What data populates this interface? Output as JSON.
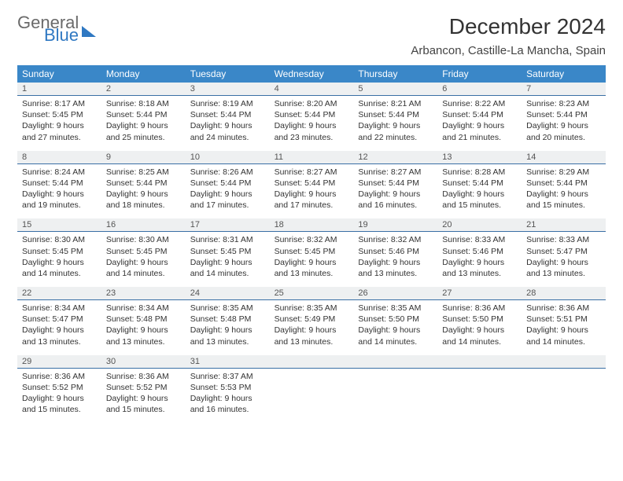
{
  "brand": {
    "word1": "General",
    "word2": "Blue"
  },
  "header": {
    "month_title": "December 2024",
    "location": "Arbancon, Castille-La Mancha, Spain"
  },
  "colors": {
    "header_bg": "#3a87c8",
    "daynum_bg": "#eef0f1",
    "daynum_border": "#3a6fa5",
    "brand_blue": "#2f78c2",
    "brand_gray": "#6a6a6a"
  },
  "weekdays": [
    "Sunday",
    "Monday",
    "Tuesday",
    "Wednesday",
    "Thursday",
    "Friday",
    "Saturday"
  ],
  "weeks": [
    [
      {
        "n": "1",
        "sr": "Sunrise: 8:17 AM",
        "ss": "Sunset: 5:45 PM",
        "d1": "Daylight: 9 hours",
        "d2": "and 27 minutes."
      },
      {
        "n": "2",
        "sr": "Sunrise: 8:18 AM",
        "ss": "Sunset: 5:44 PM",
        "d1": "Daylight: 9 hours",
        "d2": "and 25 minutes."
      },
      {
        "n": "3",
        "sr": "Sunrise: 8:19 AM",
        "ss": "Sunset: 5:44 PM",
        "d1": "Daylight: 9 hours",
        "d2": "and 24 minutes."
      },
      {
        "n": "4",
        "sr": "Sunrise: 8:20 AM",
        "ss": "Sunset: 5:44 PM",
        "d1": "Daylight: 9 hours",
        "d2": "and 23 minutes."
      },
      {
        "n": "5",
        "sr": "Sunrise: 8:21 AM",
        "ss": "Sunset: 5:44 PM",
        "d1": "Daylight: 9 hours",
        "d2": "and 22 minutes."
      },
      {
        "n": "6",
        "sr": "Sunrise: 8:22 AM",
        "ss": "Sunset: 5:44 PM",
        "d1": "Daylight: 9 hours",
        "d2": "and 21 minutes."
      },
      {
        "n": "7",
        "sr": "Sunrise: 8:23 AM",
        "ss": "Sunset: 5:44 PM",
        "d1": "Daylight: 9 hours",
        "d2": "and 20 minutes."
      }
    ],
    [
      {
        "n": "8",
        "sr": "Sunrise: 8:24 AM",
        "ss": "Sunset: 5:44 PM",
        "d1": "Daylight: 9 hours",
        "d2": "and 19 minutes."
      },
      {
        "n": "9",
        "sr": "Sunrise: 8:25 AM",
        "ss": "Sunset: 5:44 PM",
        "d1": "Daylight: 9 hours",
        "d2": "and 18 minutes."
      },
      {
        "n": "10",
        "sr": "Sunrise: 8:26 AM",
        "ss": "Sunset: 5:44 PM",
        "d1": "Daylight: 9 hours",
        "d2": "and 17 minutes."
      },
      {
        "n": "11",
        "sr": "Sunrise: 8:27 AM",
        "ss": "Sunset: 5:44 PM",
        "d1": "Daylight: 9 hours",
        "d2": "and 17 minutes."
      },
      {
        "n": "12",
        "sr": "Sunrise: 8:27 AM",
        "ss": "Sunset: 5:44 PM",
        "d1": "Daylight: 9 hours",
        "d2": "and 16 minutes."
      },
      {
        "n": "13",
        "sr": "Sunrise: 8:28 AM",
        "ss": "Sunset: 5:44 PM",
        "d1": "Daylight: 9 hours",
        "d2": "and 15 minutes."
      },
      {
        "n": "14",
        "sr": "Sunrise: 8:29 AM",
        "ss": "Sunset: 5:44 PM",
        "d1": "Daylight: 9 hours",
        "d2": "and 15 minutes."
      }
    ],
    [
      {
        "n": "15",
        "sr": "Sunrise: 8:30 AM",
        "ss": "Sunset: 5:45 PM",
        "d1": "Daylight: 9 hours",
        "d2": "and 14 minutes."
      },
      {
        "n": "16",
        "sr": "Sunrise: 8:30 AM",
        "ss": "Sunset: 5:45 PM",
        "d1": "Daylight: 9 hours",
        "d2": "and 14 minutes."
      },
      {
        "n": "17",
        "sr": "Sunrise: 8:31 AM",
        "ss": "Sunset: 5:45 PM",
        "d1": "Daylight: 9 hours",
        "d2": "and 14 minutes."
      },
      {
        "n": "18",
        "sr": "Sunrise: 8:32 AM",
        "ss": "Sunset: 5:45 PM",
        "d1": "Daylight: 9 hours",
        "d2": "and 13 minutes."
      },
      {
        "n": "19",
        "sr": "Sunrise: 8:32 AM",
        "ss": "Sunset: 5:46 PM",
        "d1": "Daylight: 9 hours",
        "d2": "and 13 minutes."
      },
      {
        "n": "20",
        "sr": "Sunrise: 8:33 AM",
        "ss": "Sunset: 5:46 PM",
        "d1": "Daylight: 9 hours",
        "d2": "and 13 minutes."
      },
      {
        "n": "21",
        "sr": "Sunrise: 8:33 AM",
        "ss": "Sunset: 5:47 PM",
        "d1": "Daylight: 9 hours",
        "d2": "and 13 minutes."
      }
    ],
    [
      {
        "n": "22",
        "sr": "Sunrise: 8:34 AM",
        "ss": "Sunset: 5:47 PM",
        "d1": "Daylight: 9 hours",
        "d2": "and 13 minutes."
      },
      {
        "n": "23",
        "sr": "Sunrise: 8:34 AM",
        "ss": "Sunset: 5:48 PM",
        "d1": "Daylight: 9 hours",
        "d2": "and 13 minutes."
      },
      {
        "n": "24",
        "sr": "Sunrise: 8:35 AM",
        "ss": "Sunset: 5:48 PM",
        "d1": "Daylight: 9 hours",
        "d2": "and 13 minutes."
      },
      {
        "n": "25",
        "sr": "Sunrise: 8:35 AM",
        "ss": "Sunset: 5:49 PM",
        "d1": "Daylight: 9 hours",
        "d2": "and 13 minutes."
      },
      {
        "n": "26",
        "sr": "Sunrise: 8:35 AM",
        "ss": "Sunset: 5:50 PM",
        "d1": "Daylight: 9 hours",
        "d2": "and 14 minutes."
      },
      {
        "n": "27",
        "sr": "Sunrise: 8:36 AM",
        "ss": "Sunset: 5:50 PM",
        "d1": "Daylight: 9 hours",
        "d2": "and 14 minutes."
      },
      {
        "n": "28",
        "sr": "Sunrise: 8:36 AM",
        "ss": "Sunset: 5:51 PM",
        "d1": "Daylight: 9 hours",
        "d2": "and 14 minutes."
      }
    ],
    [
      {
        "n": "29",
        "sr": "Sunrise: 8:36 AM",
        "ss": "Sunset: 5:52 PM",
        "d1": "Daylight: 9 hours",
        "d2": "and 15 minutes."
      },
      {
        "n": "30",
        "sr": "Sunrise: 8:36 AM",
        "ss": "Sunset: 5:52 PM",
        "d1": "Daylight: 9 hours",
        "d2": "and 15 minutes."
      },
      {
        "n": "31",
        "sr": "Sunrise: 8:37 AM",
        "ss": "Sunset: 5:53 PM",
        "d1": "Daylight: 9 hours",
        "d2": "and 16 minutes."
      },
      null,
      null,
      null,
      null
    ]
  ]
}
